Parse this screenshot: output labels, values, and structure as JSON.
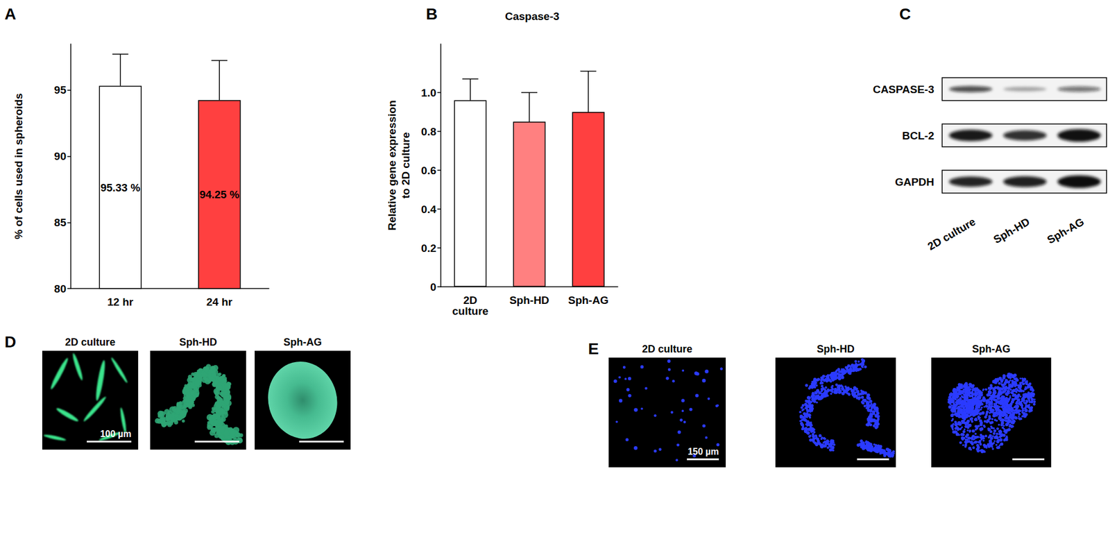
{
  "chart_data": [
    {
      "type": "bar",
      "categories": [
        "12 hr",
        "24 hr"
      ],
      "values": [
        95.33,
        94.25
      ],
      "errors": [
        2.4,
        3.0
      ],
      "value_labels": [
        "95.33 %",
        "94.25 %"
      ],
      "data_labels": true,
      "colors": [
        "#ffffff",
        "#ff4040"
      ],
      "y_label": "% of cells used in spheroids",
      "ylim": [
        80,
        98.5
      ],
      "yticks": [
        80,
        85,
        90,
        95
      ],
      "grid": false
    },
    {
      "type": "bar",
      "title": "Caspase-3",
      "categories": [
        "2D culture",
        "Sph-HD",
        "Sph-AG"
      ],
      "values": [
        0.96,
        0.85,
        0.9
      ],
      "errors": [
        0.11,
        0.15,
        0.21
      ],
      "data_labels": false,
      "colors": [
        "#ffffff",
        "#ff8080",
        "#ff4040"
      ],
      "y_label": "Relative gene expression\nto 2D culture",
      "ylim": [
        0,
        1.25
      ],
      "yticks": [
        0,
        0.2,
        0.4,
        0.6,
        0.8,
        {
          "value": 1,
          "label": "1.0"
        }
      ],
      "grid": false
    }
  ],
  "panel_labels": [
    "A",
    "B",
    "C",
    "D",
    "E"
  ],
  "blot": {
    "rows": [
      "CASPASE-3",
      "BCL-2",
      "GAPDH"
    ],
    "lanes": [
      "2D culture",
      "Sph-HD",
      "Sph-AG"
    ]
  },
  "micrographs": [
    {
      "columns": [
        "2D culture",
        "Sph-HD",
        "Sph-AG"
      ],
      "scale_bar": "100 µm"
    },
    {
      "columns": [
        "2D culture",
        "Sph-HD",
        "Sph-AG"
      ],
      "scale_bar": "150 µm"
    }
  ]
}
